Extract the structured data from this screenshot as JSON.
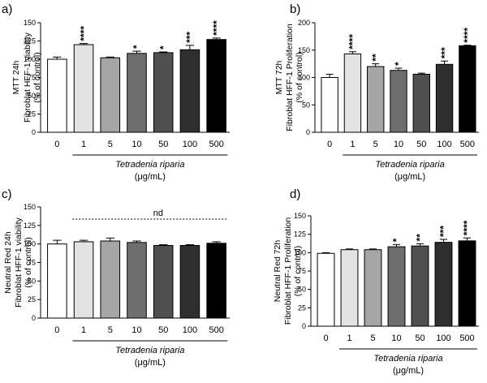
{
  "chart_data": [
    {
      "panel": "a)",
      "type": "bar",
      "ylabel_lines": [
        "MTT 24h",
        "Fibroblat HFF-1 viability",
        "(% of control)"
      ],
      "ylim": [
        0,
        150
      ],
      "yticks": [
        "0",
        "25",
        "50",
        "75",
        "100",
        "125",
        "150"
      ],
      "categories": [
        "0",
        "1",
        "5",
        "10",
        "50",
        "100",
        "500"
      ],
      "values": [
        100,
        120,
        102,
        108,
        109,
        113,
        127
      ],
      "errors": [
        3,
        1.5,
        1,
        3,
        1,
        6,
        2
      ],
      "significance": [
        "",
        "****",
        "",
        "*",
        "*",
        "***",
        "****"
      ],
      "group_label": "Tetradenia riparia",
      "unit_label": "(μg/mL)",
      "annotation": "",
      "colors": [
        "#ffffff",
        "#e3e3e3",
        "#a6a6a6",
        "#6e6e6e",
        "#505050",
        "#2f2f2f",
        "#000000"
      ]
    },
    {
      "panel": "b)",
      "type": "bar",
      "ylabel_lines": [
        "MTT 72h",
        "Fibroblat HFF-1 Proliferation",
        "(% of control)"
      ],
      "ylim": [
        0,
        200
      ],
      "yticks": [
        "0",
        "50",
        "100",
        "150",
        "200"
      ],
      "categories": [
        "0",
        "1",
        "5",
        "10",
        "50",
        "100",
        "500"
      ],
      "values": [
        100,
        143,
        120,
        113,
        106,
        124,
        158
      ],
      "errors": [
        6,
        4,
        5,
        4,
        2,
        6,
        1
      ],
      "significance": [
        "",
        "****",
        "**",
        "*",
        "",
        "***",
        "****"
      ],
      "group_label": "Tetradenia riparia",
      "unit_label": "(μg/mL)",
      "annotation": "",
      "colors": [
        "#ffffff",
        "#e3e3e3",
        "#a6a6a6",
        "#6e6e6e",
        "#505050",
        "#2f2f2f",
        "#000000"
      ]
    },
    {
      "panel": "c)",
      "type": "bar",
      "ylabel_lines": [
        "Neutral Red 24h",
        "Fibroblat HFF-1 viability",
        "(% of control)"
      ],
      "ylim": [
        0,
        150
      ],
      "yticks": [
        "0",
        "25",
        "50",
        "75",
        "100",
        "125",
        "150"
      ],
      "categories": [
        "0",
        "1",
        "5",
        "10",
        "50",
        "100",
        "500"
      ],
      "values": [
        100,
        103,
        104,
        102,
        98,
        98,
        101
      ],
      "errors": [
        5,
        2,
        4,
        2,
        1,
        1,
        2
      ],
      "significance": [
        "",
        "",
        "",
        "",
        "",
        "",
        ""
      ],
      "group_label": "Tetradenia riparia",
      "unit_label": "(μg/mL)",
      "annotation": "nd",
      "colors": [
        "#ffffff",
        "#e3e3e3",
        "#a6a6a6",
        "#6e6e6e",
        "#505050",
        "#2f2f2f",
        "#000000"
      ]
    },
    {
      "panel": "d)",
      "type": "bar",
      "ylabel_lines": [
        "Neutral Red 72h",
        "Fibroblat HFF-1 Proliferation",
        "(% of control)"
      ],
      "ylim": [
        0,
        150
      ],
      "yticks": [
        "0",
        "25",
        "50",
        "75",
        "100",
        "125",
        "150"
      ],
      "categories": [
        "0",
        "1",
        "5",
        "10",
        "50",
        "100",
        "500"
      ],
      "values": [
        99,
        104,
        104,
        108,
        109,
        114,
        116
      ],
      "errors": [
        1,
        1,
        1,
        3,
        3,
        4,
        4
      ],
      "significance": [
        "",
        "",
        "",
        "*",
        "**",
        "***",
        "****"
      ],
      "group_label": "Tetradenia riparia",
      "unit_label": "(μg/mL)",
      "annotation": "",
      "colors": [
        "#ffffff",
        "#e3e3e3",
        "#a6a6a6",
        "#6e6e6e",
        "#505050",
        "#2f2f2f",
        "#000000"
      ]
    }
  ]
}
